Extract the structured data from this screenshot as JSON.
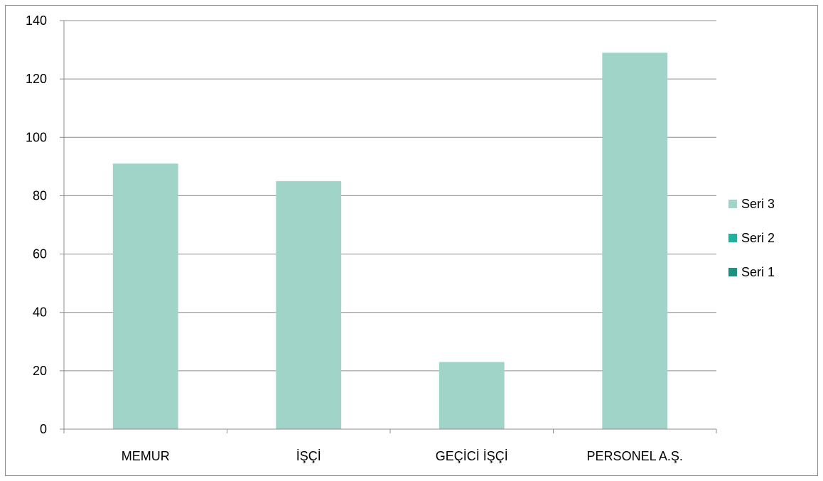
{
  "chart_data": {
    "type": "bar",
    "categories": [
      "MEMUR",
      "İŞÇİ",
      "GEÇİCİ İŞÇİ",
      "PERSONEL A.Ş."
    ],
    "series": [
      {
        "name": "Seri 1",
        "color": "#1c9180",
        "values": [
          0,
          0,
          0,
          0
        ]
      },
      {
        "name": "Seri 2",
        "color": "#1fb2a0",
        "values": [
          0,
          0,
          0,
          0
        ]
      },
      {
        "name": "Seri 3",
        "color": "#a1d4c9",
        "values": [
          91,
          85,
          23,
          129
        ]
      }
    ],
    "title": "",
    "xlabel": "",
    "ylabel": "",
    "ylim": [
      0,
      140
    ],
    "yticks": [
      "0",
      "20",
      "40",
      "60",
      "80",
      "100",
      "120",
      "140"
    ],
    "grid": true,
    "legend_position": "right",
    "legend_order": [
      "Seri 3",
      "Seri 2",
      "Seri 1"
    ],
    "stacked": true
  }
}
